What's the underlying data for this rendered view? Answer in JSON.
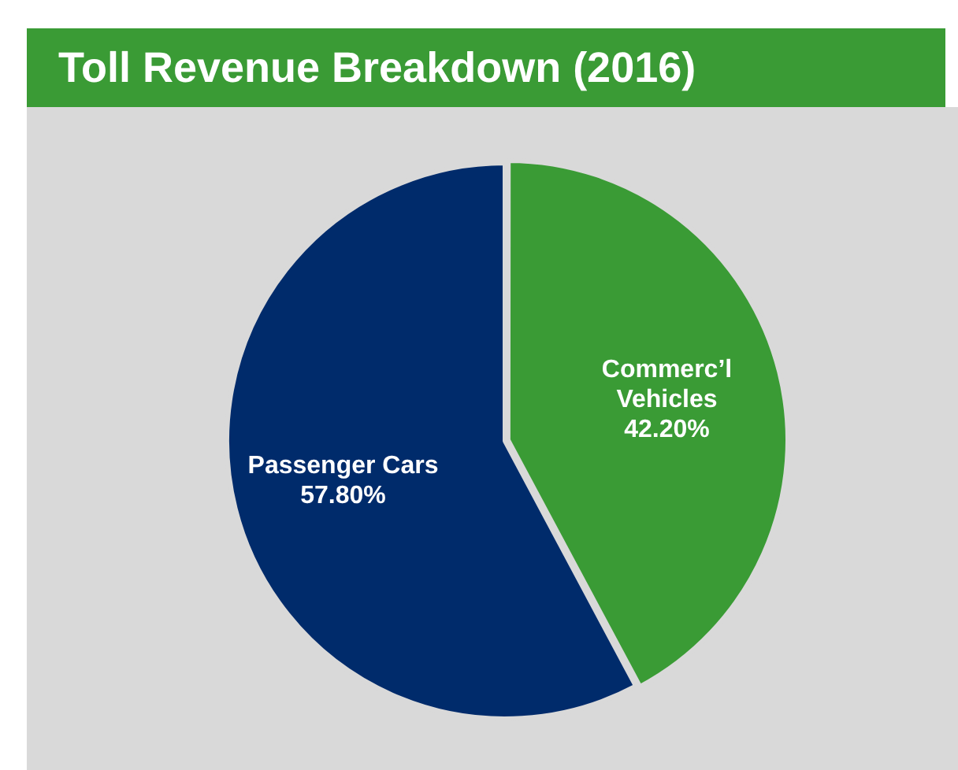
{
  "chart_data": {
    "type": "pie",
    "title": "Toll Revenue Breakdown (2016)",
    "categories": [
      "Commerc’l Vehicles",
      "Passenger Cars"
    ],
    "values": [
      42.2,
      57.8
    ],
    "colors": [
      "#3a9b35",
      "#002b6b"
    ],
    "value_labels": [
      "42.20%",
      "57.80%"
    ],
    "legend": false
  }
}
